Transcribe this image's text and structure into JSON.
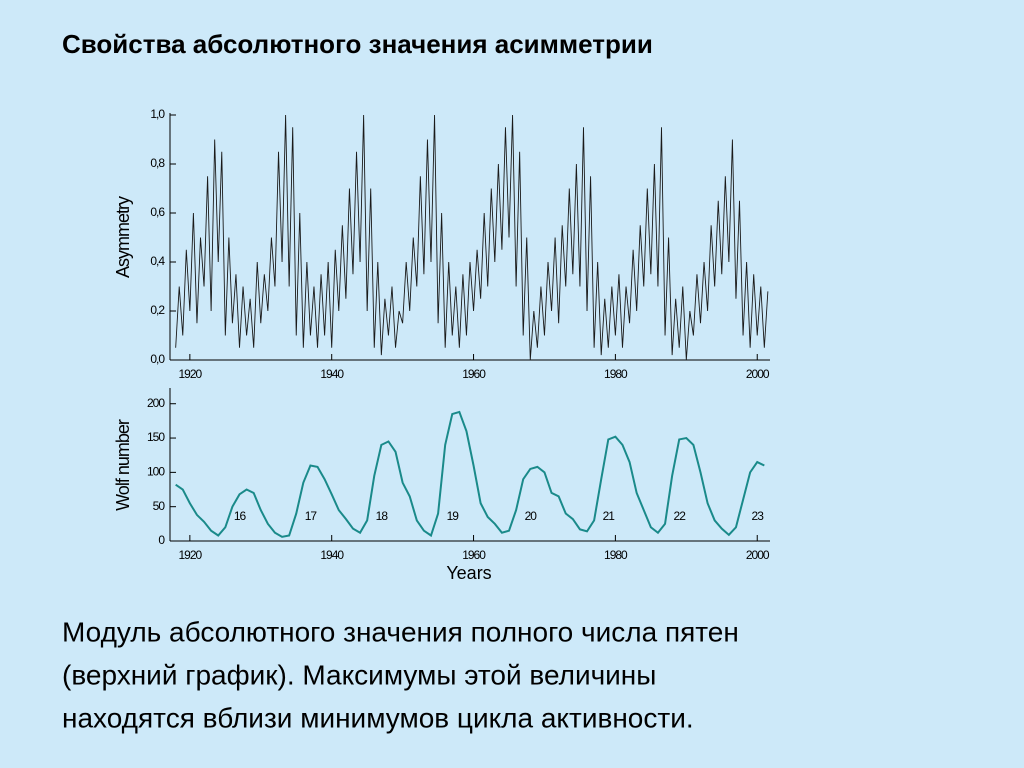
{
  "title": "Свойства абсолютного значения асимметрии",
  "chart_data": [
    {
      "type": "line",
      "y_label": "Asymmetry",
      "color": "#1a1a1a",
      "xlim": [
        1917.2,
        2001.8
      ],
      "ylim": [
        0,
        1
      ],
      "xticks": [
        1920,
        1940,
        1960,
        1980,
        2000
      ],
      "yticks": [
        {
          "value": 0,
          "label": "0,0"
        },
        {
          "value": 0.2,
          "label": "0,2"
        },
        {
          "value": 0.4,
          "label": "0,4"
        },
        {
          "value": 0.6,
          "label": "0,6"
        },
        {
          "value": 0.8,
          "label": "0,8"
        },
        {
          "value": 1,
          "label": "1,0"
        }
      ],
      "x": [
        1918,
        1918.5,
        1919,
        1919.5,
        1920,
        1920.5,
        1921,
        1921.5,
        1922,
        1922.5,
        1923,
        1923.5,
        1924,
        1924.5,
        1925,
        1925.5,
        1926,
        1926.5,
        1927,
        1927.5,
        1928,
        1928.5,
        1929,
        1929.5,
        1930,
        1930.5,
        1931,
        1931.5,
        1932,
        1932.5,
        1933,
        1933.5,
        1934,
        1934.5,
        1935,
        1935.5,
        1936,
        1936.5,
        1937,
        1937.5,
        1938,
        1938.5,
        1939,
        1939.5,
        1940,
        1940.5,
        1941,
        1941.5,
        1942,
        1942.5,
        1943,
        1943.5,
        1944,
        1944.5,
        1945,
        1945.5,
        1946,
        1946.5,
        1947,
        1947.5,
        1948,
        1948.5,
        1949,
        1949.5,
        1950,
        1950.5,
        1951,
        1951.5,
        1952,
        1952.5,
        1953,
        1953.5,
        1954,
        1954.5,
        1955,
        1955.5,
        1956,
        1956.5,
        1957,
        1957.5,
        1958,
        1958.5,
        1959,
        1959.5,
        1960,
        1960.5,
        1961,
        1961.5,
        1962,
        1962.5,
        1963,
        1963.5,
        1964,
        1964.5,
        1965,
        1965.5,
        1966,
        1966.5,
        1967,
        1967.5,
        1968,
        1968.5,
        1969,
        1969.5,
        1970,
        1970.5,
        1971,
        1971.5,
        1972,
        1972.5,
        1973,
        1973.5,
        1974,
        1974.5,
        1975,
        1975.5,
        1976,
        1976.5,
        1977,
        1977.5,
        1978,
        1978.5,
        1979,
        1979.5,
        1980,
        1980.5,
        1981,
        1981.5,
        1982,
        1982.5,
        1983,
        1983.5,
        1984,
        1984.5,
        1985,
        1985.5,
        1986,
        1986.5,
        1987,
        1987.5,
        1988,
        1988.5,
        1989,
        1989.5,
        1990,
        1990.5,
        1991,
        1991.5,
        1992,
        1992.5,
        1993,
        1993.5,
        1994,
        1994.5,
        1995,
        1995.5,
        1996,
        1996.5,
        1997,
        1997.5,
        1998,
        1998.5,
        1999,
        1999.5,
        2000,
        2000.5,
        2001,
        2001.5
      ],
      "values": [
        0.05,
        0.3,
        0.1,
        0.45,
        0.2,
        0.6,
        0.15,
        0.5,
        0.3,
        0.75,
        0.2,
        0.9,
        0.4,
        0.85,
        0.1,
        0.5,
        0.15,
        0.35,
        0.05,
        0.3,
        0.1,
        0.25,
        0.05,
        0.4,
        0.15,
        0.35,
        0.2,
        0.5,
        0.3,
        0.85,
        0.4,
        1.0,
        0.3,
        0.95,
        0.1,
        0.6,
        0.05,
        0.4,
        0.1,
        0.3,
        0.05,
        0.35,
        0.1,
        0.4,
        0.05,
        0.45,
        0.2,
        0.55,
        0.25,
        0.7,
        0.35,
        0.85,
        0.4,
        1.0,
        0.2,
        0.7,
        0.05,
        0.4,
        0.02,
        0.25,
        0.1,
        0.3,
        0.05,
        0.2,
        0.15,
        0.4,
        0.2,
        0.5,
        0.3,
        0.75,
        0.35,
        0.9,
        0.4,
        1.0,
        0.15,
        0.6,
        0.05,
        0.4,
        0.1,
        0.3,
        0.05,
        0.35,
        0.1,
        0.4,
        0.2,
        0.45,
        0.25,
        0.6,
        0.3,
        0.7,
        0.4,
        0.8,
        0.45,
        0.95,
        0.5,
        1.0,
        0.3,
        0.85,
        0.1,
        0.5,
        0.0,
        0.2,
        0.05,
        0.3,
        0.1,
        0.4,
        0.2,
        0.5,
        0.15,
        0.55,
        0.3,
        0.7,
        0.35,
        0.8,
        0.3,
        0.95,
        0.2,
        0.75,
        0.05,
        0.4,
        0.02,
        0.25,
        0.05,
        0.3,
        0.1,
        0.35,
        0.05,
        0.3,
        0.15,
        0.45,
        0.2,
        0.55,
        0.3,
        0.7,
        0.35,
        0.8,
        0.3,
        0.95,
        0.1,
        0.5,
        0.02,
        0.25,
        0.05,
        0.3,
        0.0,
        0.2,
        0.1,
        0.35,
        0.15,
        0.4,
        0.2,
        0.55,
        0.3,
        0.65,
        0.35,
        0.75,
        0.4,
        0.9,
        0.25,
        0.65,
        0.1,
        0.4,
        0.05,
        0.35,
        0.1,
        0.3,
        0.05,
        0.28
      ]
    },
    {
      "type": "line",
      "x_label": "Years",
      "y_label": "Wolf number",
      "color": "#1a8a8a",
      "xlim": [
        1917.2,
        2001.8
      ],
      "ylim": [
        0,
        220
      ],
      "xticks": [
        1920,
        1940,
        1960,
        1980,
        2000
      ],
      "yticks": [
        0,
        50,
        100,
        150,
        200
      ],
      "x": [
        1918,
        1919,
        1920,
        1921,
        1922,
        1923,
        1924,
        1925,
        1926,
        1927,
        1928,
        1929,
        1930,
        1931,
        1932,
        1933,
        1934,
        1935,
        1936,
        1937,
        1938,
        1939,
        1940,
        1941,
        1942,
        1943,
        1944,
        1945,
        1946,
        1947,
        1948,
        1949,
        1950,
        1951,
        1952,
        1953,
        1954,
        1955,
        1956,
        1957,
        1958,
        1959,
        1960,
        1961,
        1962,
        1963,
        1964,
        1965,
        1966,
        1967,
        1968,
        1969,
        1970,
        1971,
        1972,
        1973,
        1974,
        1975,
        1976,
        1977,
        1978,
        1979,
        1980,
        1981,
        1982,
        1983,
        1984,
        1985,
        1986,
        1987,
        1988,
        1989,
        1990,
        1991,
        1992,
        1993,
        1994,
        1995,
        1996,
        1997,
        1998,
        1999,
        2000,
        2001
      ],
      "values": [
        82,
        75,
        55,
        38,
        28,
        15,
        8,
        20,
        50,
        68,
        75,
        70,
        45,
        25,
        12,
        6,
        8,
        40,
        85,
        110,
        108,
        90,
        68,
        45,
        32,
        18,
        12,
        30,
        95,
        140,
        145,
        130,
        85,
        65,
        30,
        15,
        8,
        40,
        140,
        185,
        188,
        160,
        110,
        55,
        35,
        25,
        12,
        15,
        45,
        90,
        105,
        108,
        100,
        70,
        65,
        40,
        32,
        17,
        14,
        30,
        90,
        148,
        152,
        140,
        115,
        70,
        45,
        20,
        12,
        25,
        95,
        148,
        150,
        140,
        100,
        55,
        30,
        18,
        9,
        20,
        60,
        100,
        115,
        110
      ],
      "annotations": [
        {
          "text": "16",
          "x": 1927
        },
        {
          "text": "17",
          "x": 1937
        },
        {
          "text": "18",
          "x": 1947
        },
        {
          "text": "19",
          "x": 1957
        },
        {
          "text": "20",
          "x": 1968
        },
        {
          "text": "21",
          "x": 1979
        },
        {
          "text": "22",
          "x": 1989
        },
        {
          "text": "23",
          "x": 2000
        }
      ]
    }
  ],
  "body_lines": [
    "Модуль абсолютного значения полного числа пятен",
    "(верхний график). Максимумы этой величины",
    "находятся вблизи минимумов цикла активности."
  ]
}
